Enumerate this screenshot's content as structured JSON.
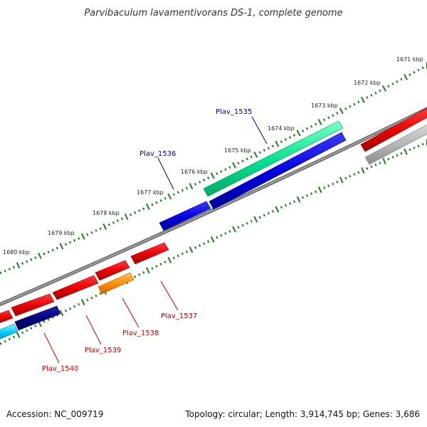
{
  "title": "Parvibaculum lavamentivorans DS-1, complete genome",
  "footer": {
    "accession": "Accession: NC_009719",
    "summary": "Topology: circular; Length: 3,914,745 bp; Genes: 3,686"
  },
  "colors": {
    "backbone": "#808080",
    "tick_mark": "#1e7a1e",
    "red_gene": "#e60000",
    "blue_gene": "#0000dd",
    "navy_gene": "#00007a",
    "teal_gene": "#00e08c",
    "orange_gene": "#ff8c00",
    "cyan_gene": "#00ccff",
    "gray_gene": "#a8a8a8",
    "top_label": "#00008b",
    "bottom_label": "#bb0000"
  },
  "kbp_ticks": [
    "1671 kbp",
    "1672 kbp",
    "1673 kbp",
    "1674 kbp",
    "1675 kbp",
    "1676 kbp",
    "1677 kbp",
    "1678 kbp",
    "1679 kbp",
    "1680 kbp"
  ],
  "labelled_genes": [
    {
      "name": "Plav_1535",
      "track": "top",
      "color": "teal"
    },
    {
      "name": "Plav_1536",
      "track": "top",
      "color": "blue"
    },
    {
      "name": "Plav_1537",
      "track": "bottom",
      "color": "red"
    },
    {
      "name": "Plav_1538",
      "track": "bottom",
      "color": "orange"
    },
    {
      "name": "Plav_1539",
      "track": "bottom",
      "color": "red"
    },
    {
      "name": "Plav_1540",
      "track": "bottom",
      "color": "navy"
    }
  ]
}
